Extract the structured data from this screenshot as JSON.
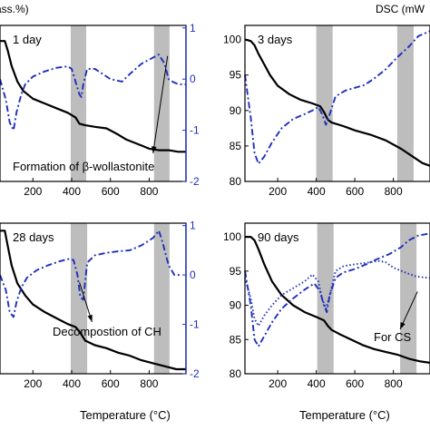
{
  "colors": {
    "tg": "#000000",
    "dsc": "#1f2fbf",
    "band": "#bdbdbd",
    "dsc_axis": "#1f2fbf"
  },
  "header": {
    "left_label": "ass.%)",
    "right_label": "DSC (mW"
  },
  "footer": {
    "xlabel_left": "Temperature (°C)",
    "xlabel_right": "Temperature (°C)"
  },
  "chart_data": [
    {
      "type": "line",
      "panel_label": "1 day",
      "x_ticks": [
        "200",
        "400",
        "600",
        "800"
      ],
      "xlim": [
        30,
        990
      ],
      "left_y_ticks": [],
      "right_y_ticks": [
        "1",
        "0",
        "-1",
        "-2"
      ],
      "right_ylim": [
        -2,
        1.05
      ],
      "left_ylim": [
        0,
        1
      ],
      "bands": [
        [
          395,
          475
        ],
        [
          825,
          905
        ]
      ],
      "annotation": {
        "text": "Formation of β-wollastonite",
        "from": [
          820,
          -1.45
        ],
        "to": [
          895,
          0.45
        ]
      },
      "series": [
        {
          "axis": "left",
          "style": "solid",
          "x": [
            30,
            55,
            70,
            90,
            120,
            150,
            200,
            260,
            320,
            380,
            420,
            440,
            470,
            520,
            580,
            640,
            680,
            720,
            760,
            800,
            850,
            900,
            950,
            990
          ],
          "y": [
            0.9,
            0.9,
            0.84,
            0.74,
            0.64,
            0.58,
            0.53,
            0.5,
            0.47,
            0.44,
            0.41,
            0.37,
            0.36,
            0.35,
            0.34,
            0.3,
            0.27,
            0.25,
            0.23,
            0.21,
            0.2,
            0.2,
            0.19,
            0.19
          ]
        },
        {
          "axis": "right",
          "style": "dashdot",
          "x": [
            30,
            60,
            80,
            100,
            115,
            140,
            160,
            200,
            260,
            320,
            380,
            400,
            420,
            440,
            450,
            460,
            480,
            520,
            560,
            600,
            660,
            700,
            760,
            800,
            850,
            880,
            900,
            920,
            950,
            990
          ],
          "y": [
            0.0,
            -0.4,
            -0.85,
            -1.0,
            -0.65,
            -0.3,
            -0.1,
            0.05,
            0.15,
            0.22,
            0.25,
            0.2,
            -0.05,
            -0.3,
            -0.35,
            -0.1,
            0.2,
            0.2,
            0.1,
            0.0,
            -0.05,
            0.1,
            0.3,
            0.38,
            0.48,
            0.3,
            0.0,
            -0.05,
            -0.1,
            -0.1
          ]
        }
      ]
    },
    {
      "type": "line",
      "panel_label": "3 days",
      "x_ticks": [
        "200",
        "400",
        "600",
        "800"
      ],
      "xlim": [
        30,
        990
      ],
      "left_y_ticks": [
        "100",
        "95",
        "90",
        "85",
        "80"
      ],
      "left_ylim": [
        80,
        102
      ],
      "right_y_ticks": [],
      "right_ylim": [
        -2,
        1
      ],
      "bands": [
        [
          400,
          485
        ],
        [
          820,
          905
        ]
      ],
      "series": [
        {
          "axis": "left",
          "style": "solid",
          "x": [
            30,
            60,
            80,
            100,
            130,
            160,
            200,
            260,
            320,
            380,
            420,
            440,
            460,
            480,
            540,
            600,
            680,
            760,
            840,
            900,
            950,
            990
          ],
          "y": [
            100,
            99.8,
            99.2,
            98.0,
            96.5,
            95.0,
            93.5,
            92.3,
            91.5,
            91.0,
            90.6,
            89.8,
            88.7,
            88.3,
            87.8,
            87.2,
            86.6,
            85.8,
            84.6,
            83.5,
            82.6,
            82.2
          ]
        },
        {
          "axis": "left",
          "style": "dashdot",
          "x": [
            30,
            60,
            80,
            100,
            130,
            170,
            220,
            280,
            340,
            380,
            410,
            430,
            450,
            470,
            500,
            550,
            600,
            650,
            700,
            760,
            820,
            880,
            930,
            990
          ],
          "y": [
            95,
            89,
            84,
            82.5,
            83.5,
            85.5,
            87.5,
            88.8,
            89.5,
            90,
            90.5,
            89.5,
            88,
            89.5,
            92,
            92.8,
            93.2,
            93.6,
            94.5,
            95.8,
            97.5,
            99,
            100.5,
            101.2
          ]
        }
      ]
    },
    {
      "type": "line",
      "panel_label": "28 days",
      "x_ticks": [
        "200",
        "400",
        "600",
        "800"
      ],
      "xlim": [
        30,
        990
      ],
      "left_y_ticks": [],
      "left_ylim": [
        0,
        1
      ],
      "right_y_ticks": [
        "1",
        "0",
        "-1",
        "-2"
      ],
      "right_ylim": [
        -2,
        1.05
      ],
      "bands": [
        [
          395,
          480
        ],
        [
          825,
          905
        ]
      ],
      "annotation": {
        "text": "Decompostion of CH",
        "from": [
          505,
          -0.95
        ],
        "to": [
          440,
          -0.15
        ]
      },
      "series": [
        {
          "axis": "left",
          "style": "solid",
          "x": [
            30,
            55,
            70,
            90,
            120,
            160,
            200,
            260,
            320,
            380,
            420,
            440,
            470,
            520,
            580,
            640,
            700,
            760,
            820,
            880,
            940,
            990
          ],
          "y": [
            0.95,
            0.95,
            0.85,
            0.72,
            0.6,
            0.52,
            0.46,
            0.41,
            0.37,
            0.33,
            0.31,
            0.28,
            0.22,
            0.19,
            0.17,
            0.14,
            0.12,
            0.09,
            0.07,
            0.05,
            0.03,
            0.03
          ]
        },
        {
          "axis": "right",
          "style": "dashdot",
          "x": [
            30,
            60,
            80,
            100,
            115,
            140,
            170,
            220,
            280,
            340,
            390,
            410,
            430,
            445,
            460,
            480,
            520,
            580,
            640,
            700,
            760,
            820,
            850,
            870,
            900,
            930,
            960
          ],
          "y": [
            0.0,
            -0.3,
            -0.75,
            -0.85,
            -0.55,
            -0.25,
            -0.05,
            0.1,
            0.2,
            0.28,
            0.33,
            0.3,
            0.0,
            -0.45,
            -0.5,
            0.25,
            0.4,
            0.45,
            0.48,
            0.5,
            0.6,
            0.75,
            0.9,
            0.65,
            0.2,
            0.0,
            0.0
          ]
        }
      ]
    },
    {
      "type": "line",
      "panel_label": "90 days",
      "x_ticks": [
        "200",
        "400",
        "600",
        "800"
      ],
      "xlim": [
        30,
        990
      ],
      "left_y_ticks": [
        "100",
        "95",
        "90",
        "85",
        "80"
      ],
      "left_ylim": [
        80,
        102
      ],
      "right_y_ticks": [],
      "right_ylim": [
        -2,
        1
      ],
      "bands": [
        [
          405,
          490
        ],
        [
          835,
          920
        ]
      ],
      "annotation": {
        "text": "For CS",
        "from": [
          835,
          86.5
        ],
        "to": [
          925,
          92
        ]
      },
      "series": [
        {
          "axis": "left",
          "style": "solid",
          "x": [
            30,
            60,
            80,
            100,
            130,
            170,
            220,
            280,
            340,
            400,
            440,
            460,
            480,
            520,
            580,
            640,
            700,
            760,
            820,
            880,
            940,
            990
          ],
          "y": [
            100,
            100,
            99.5,
            98.2,
            96.0,
            93.5,
            91.5,
            90.0,
            89.0,
            88.3,
            87.8,
            87.0,
            86.4,
            85.8,
            85.0,
            84.2,
            83.6,
            83.2,
            82.8,
            82.2,
            81.8,
            81.6
          ]
        },
        {
          "axis": "left",
          "style": "dashdot",
          "x": [
            30,
            60,
            80,
            100,
            130,
            170,
            220,
            280,
            340,
            390,
            420,
            440,
            455,
            470,
            500,
            540,
            600,
            660,
            720,
            780,
            840,
            880,
            930,
            990
          ],
          "y": [
            95,
            90,
            85,
            84,
            85.5,
            87.5,
            89.5,
            91,
            92.3,
            93.2,
            92,
            90,
            89,
            91.5,
            94,
            94.8,
            95.3,
            96,
            96.8,
            97.5,
            98.5,
            99.5,
            100.2,
            100.5
          ]
        },
        {
          "axis": "left",
          "style": "dotted",
          "x": [
            30,
            60,
            80,
            100,
            130,
            170,
            220,
            280,
            340,
            380,
            410,
            430,
            450,
            470,
            500,
            540,
            600,
            660,
            720,
            760,
            800,
            860,
            920,
            990
          ],
          "y": [
            94,
            91,
            88,
            87,
            88.5,
            90,
            91.5,
            92.5,
            93.5,
            94.5,
            93.5,
            91,
            89.5,
            91.5,
            95,
            95.7,
            96,
            96.2,
            96.5,
            96.3,
            95.5,
            94.8,
            94.2,
            94
          ]
        }
      ]
    }
  ]
}
